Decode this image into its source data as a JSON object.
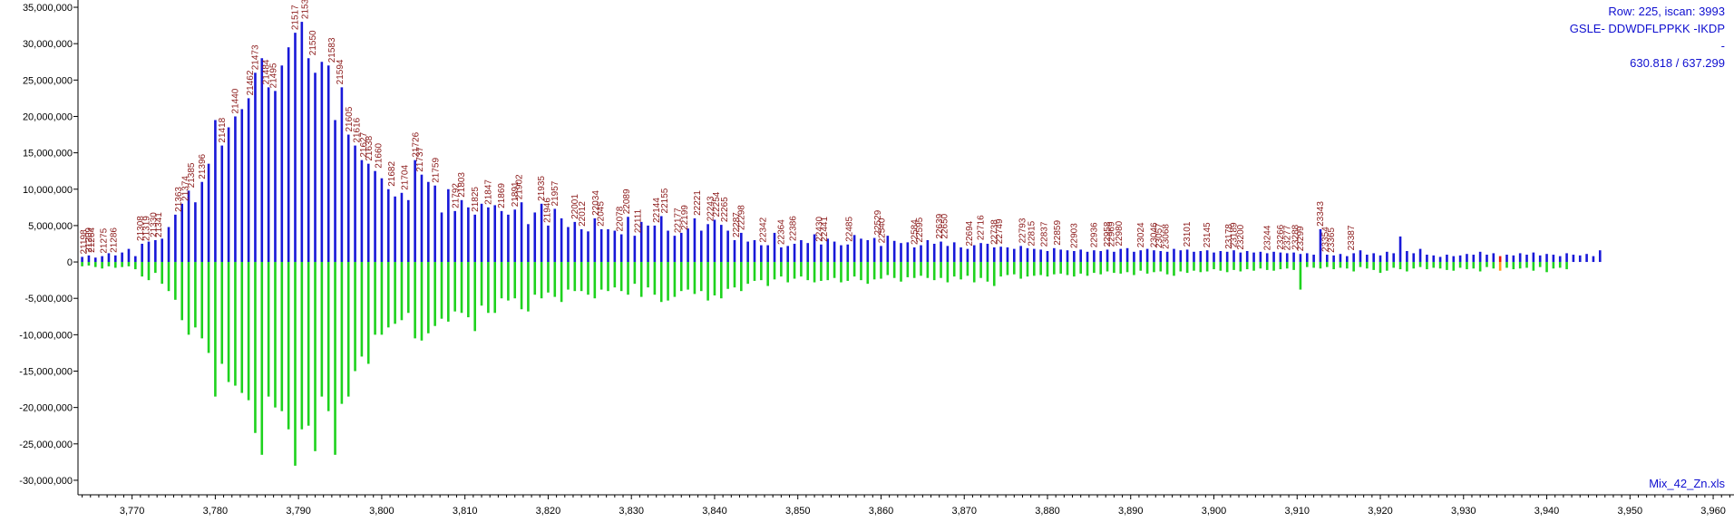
{
  "info": {
    "row_scan": "Row: 225, iscan: 3993",
    "peptide": "GSLE- DDWDFLPPKK -IKDP",
    "dash": "-",
    "mz_pair": "630.818 / 637.299",
    "filename": "Mix_42_Zn.xls"
  },
  "colors": {
    "top_bars": "#1818d8",
    "bottom_bars": "#1ed21e",
    "highlight_top": "#e81010",
    "highlight_bottom": "#ff9a1a",
    "peak_labels": "#8b1a1a",
    "info_text": "#1010d0"
  },
  "chart_data": {
    "type": "bar",
    "xlim": [
      3763.5,
      3962.5
    ],
    "ylim": [
      -32000000,
      36000000
    ],
    "yticks": [
      -30000000,
      -25000000,
      -20000000,
      -15000000,
      -10000000,
      -5000000,
      0,
      5000000,
      10000000,
      15000000,
      20000000,
      25000000,
      30000000,
      35000000
    ],
    "ytick_labels": [
      "-30,000,000",
      "-25,000,000",
      "-20,000,000",
      "-15,000,000",
      "-10,000,000",
      "-5,000,000",
      "0",
      "5,000,000",
      "10,000,000",
      "15,000,000",
      "20,000,000",
      "25,000,000",
      "30,000,000",
      "35,000,000"
    ],
    "xticks": [
      3770,
      3780,
      3790,
      3800,
      3810,
      3820,
      3830,
      3840,
      3850,
      3860,
      3870,
      3880,
      3890,
      3900,
      3910,
      3920,
      3930,
      3940,
      3950,
      3960
    ],
    "xtick_labels": [
      "3,770",
      "3,780",
      "3,790",
      "3,800",
      "3,810",
      "3,820",
      "3,830",
      "3,840",
      "3,850",
      "3,860",
      "3,870",
      "3,880",
      "3,890",
      "3,900",
      "3,910",
      "3,920",
      "3,930",
      "3,940",
      "3,950",
      "3,960"
    ],
    "x_start": 3764.0,
    "x_step": 0.8,
    "highlight_x": 3934.4,
    "top": [
      700000,
      900000,
      600000,
      800000,
      1200000,
      900000,
      1300000,
      1800000,
      800000,
      2500000,
      2800000,
      3000000,
      3200000,
      4800000,
      6500000,
      8000000,
      9800000,
      8200000,
      11000000,
      13500000,
      19500000,
      16000000,
      18500000,
      20000000,
      21000000,
      22500000,
      26000000,
      28000000,
      24000000,
      23500000,
      27000000,
      29500000,
      31500000,
      33000000,
      28000000,
      26000000,
      27500000,
      27000000,
      19500000,
      24000000,
      17500000,
      16000000,
      14000000,
      13500000,
      12500000,
      11500000,
      10000000,
      9000000,
      9500000,
      8500000,
      14000000,
      12000000,
      11000000,
      10500000,
      6800000,
      10000000,
      7000000,
      8500000,
      7500000,
      6500000,
      8000000,
      7500000,
      7800000,
      7000000,
      6500000,
      7200000,
      8200000,
      5200000,
      6800000,
      8000000,
      5000000,
      7300000,
      6000000,
      4800000,
      5500000,
      4500000,
      4200000,
      6000000,
      4500000,
      4500000,
      4300000,
      3800000,
      6200000,
      3600000,
      5500000,
      5000000,
      5000000,
      6300000,
      4300000,
      3600000,
      4000000,
      4600000,
      6000000,
      4300000,
      5200000,
      5800000,
      5100000,
      4300000,
      3000000,
      4000000,
      2800000,
      3000000,
      2300000,
      2300000,
      4000000,
      2000000,
      2200000,
      2500000,
      3000000,
      2600000,
      3800000,
      2400000,
      3200000,
      2800000,
      2300000,
      2400000,
      3700000,
      3200000,
      3000000,
      3300000,
      2200000,
      3600000,
      2900000,
      2600000,
      2700000,
      2000000,
      2300000,
      3000000,
      2500000,
      2800000,
      2200000,
      2700000,
      2000000,
      1800000,
      2300000,
      2600000,
      2500000,
      2000000,
      2100000,
      2000000,
      1800000,
      2200000,
      1900000,
      1800000,
      1700000,
      1500000,
      1900000,
      1700000,
      1600000,
      1500000,
      1700000,
      1400000,
      1600000,
      1500000,
      1700000,
      1400000,
      1800000,
      1900000,
      1400000,
      1600000,
      1800000,
      1600000,
      1500000,
      1400000,
      1800000,
      1600000,
      1700000,
      1400000,
      1500000,
      1600000,
      1300000,
      1500000,
      1400000,
      1600000,
      1300000,
      1500000,
      1300000,
      1400000,
      1200000,
      1400000,
      1300000,
      1200000,
      1300000,
      1100000,
      1200000,
      1000000,
      4500000,
      1000000,
      900000,
      1100000,
      800000,
      1200000,
      1600000,
      1000000,
      1200000,
      900000,
      1400000,
      1200000,
      3500000,
      1500000,
      1200000,
      1800000,
      1000000,
      900000,
      700000,
      1000000,
      800000,
      900000,
      1100000,
      1000000,
      1400000,
      1000000,
      1200000,
      800000,
      1000000,
      900000,
      1200000,
      1000000,
      1300000,
      900000,
      1100000,
      1000000,
      800000,
      1200000,
      1000000,
      900000,
      1100000,
      800000,
      1600000
    ],
    "bottom": [
      -600000,
      -500000,
      -700000,
      -900000,
      -600000,
      -800000,
      -700000,
      -600000,
      -1000000,
      -2000000,
      -2500000,
      -1500000,
      -3000000,
      -4000000,
      -5200000,
      -8000000,
      -10000000,
      -9000000,
      -10500000,
      -12500000,
      -18500000,
      -14000000,
      -16500000,
      -17000000,
      -18000000,
      -19000000,
      -23500000,
      -26500000,
      -18500000,
      -20000000,
      -20500000,
      -23000000,
      -28000000,
      -23000000,
      -22500000,
      -26000000,
      -18500000,
      -20500000,
      -26500000,
      -19500000,
      -18500000,
      -15000000,
      -13000000,
      -14000000,
      -10000000,
      -10000000,
      -9000000,
      -8500000,
      -8000000,
      -7000000,
      -10500000,
      -10800000,
      -9800000,
      -8800000,
      -7800000,
      -8200000,
      -6800000,
      -7000000,
      -7600000,
      -9500000,
      -6000000,
      -7000000,
      -7000000,
      -5000000,
      -5300000,
      -5000000,
      -6500000,
      -6800000,
      -4500000,
      -5000000,
      -4200000,
      -4800000,
      -5500000,
      -3800000,
      -4000000,
      -4000000,
      -4500000,
      -5000000,
      -3800000,
      -4000000,
      -3500000,
      -4000000,
      -4500000,
      -3000000,
      -4800000,
      -3500000,
      -4500000,
      -5500000,
      -5300000,
      -4800000,
      -4000000,
      -3800000,
      -4400000,
      -4000000,
      -5300000,
      -4600000,
      -5000000,
      -3700000,
      -3500000,
      -4000000,
      -3000000,
      -2600000,
      -2500000,
      -3300000,
      -2400000,
      -2000000,
      -2800000,
      -2300000,
      -2000000,
      -2500000,
      -2800000,
      -2600000,
      -2500000,
      -2200000,
      -2800000,
      -2600000,
      -2000000,
      -2500000,
      -3000000,
      -2400000,
      -2300000,
      -1800000,
      -2200000,
      -2700000,
      -2100000,
      -2200000,
      -1900000,
      -2200000,
      -2500000,
      -2200000,
      -2800000,
      -2000000,
      -2400000,
      -1900000,
      -2800000,
      -2200000,
      -2700000,
      -3300000,
      -2000000,
      -1800000,
      -1700000,
      -2300000,
      -2000000,
      -1900000,
      -1800000,
      -2000000,
      -1700000,
      -1600000,
      -1800000,
      -2000000,
      -1600000,
      -1900000,
      -1500000,
      -1700000,
      -1300000,
      -1500000,
      -1600000,
      -1400000,
      -1800000,
      -1200000,
      -1600000,
      -1400000,
      -1300000,
      -1700000,
      -1900000,
      -1300000,
      -1500000,
      -1200000,
      -1400000,
      -1300000,
      -1000000,
      -1200000,
      -1400000,
      -1100000,
      -1300000,
      -1000000,
      -1200000,
      -900000,
      -1100000,
      -1200000,
      -1000000,
      -900000,
      -1100000,
      -3800000,
      -700000,
      -800000,
      -900000,
      -700000,
      -1000000,
      -800000,
      -900000,
      -1300000,
      -700000,
      -900000,
      -1100000,
      -1500000,
      -1200000,
      -800000,
      -1000000,
      -1300000,
      -900000,
      -700000,
      -1000000,
      -800000,
      -900000,
      -1100000,
      -1200000,
      -800000,
      -1000000,
      -900000,
      -1300000,
      -700000,
      -900000,
      -1200000,
      -800000,
      -1000000,
      -900000,
      -800000,
      -1200000,
      -700000,
      -1400000,
      -900000,
      -800000,
      -1000000
    ],
    "peak_labels": [
      {
        "x": 3764.1,
        "label": "21198"
      },
      {
        "x": 3764.7,
        "label": "21209"
      },
      {
        "x": 3765.0,
        "label": "21264"
      },
      {
        "x": 3766.5,
        "label": "21275"
      },
      {
        "x": 3767.7,
        "label": "21286"
      },
      {
        "x": 3770.9,
        "label": "21308"
      },
      {
        "x": 3771.6,
        "label": "21319"
      },
      {
        "x": 3772.5,
        "label": "21330"
      },
      {
        "x": 3773.1,
        "label": "21341"
      },
      {
        "x": 3775.5,
        "label": "21363"
      },
      {
        "x": 3776.3,
        "label": "21374"
      },
      {
        "x": 3777.0,
        "label": "21385"
      },
      {
        "x": 3778.3,
        "label": "21396"
      },
      {
        "x": 3780.7,
        "label": "21418"
      },
      {
        "x": 3782.3,
        "label": "21440"
      },
      {
        "x": 3784.1,
        "label": "21462"
      },
      {
        "x": 3784.7,
        "label": "21473"
      },
      {
        "x": 3786.0,
        "label": "21484"
      },
      {
        "x": 3786.9,
        "label": "21495"
      },
      {
        "x": 3789.5,
        "label": "21517"
      },
      {
        "x": 3790.7,
        "label": "21539"
      },
      {
        "x": 3791.6,
        "label": "21550"
      },
      {
        "x": 3793.9,
        "label": "21583"
      },
      {
        "x": 3794.9,
        "label": "21594"
      },
      {
        "x": 3796.0,
        "label": "21605"
      },
      {
        "x": 3796.9,
        "label": "21616"
      },
      {
        "x": 3797.7,
        "label": "21627"
      },
      {
        "x": 3798.4,
        "label": "21638"
      },
      {
        "x": 3799.5,
        "label": "21660"
      },
      {
        "x": 3801.1,
        "label": "21682"
      },
      {
        "x": 3802.7,
        "label": "21704"
      },
      {
        "x": 3804.0,
        "label": "21726"
      },
      {
        "x": 3804.5,
        "label": "21737"
      },
      {
        "x": 3806.4,
        "label": "21759"
      },
      {
        "x": 3808.8,
        "label": "21792"
      },
      {
        "x": 3809.5,
        "label": "21803"
      },
      {
        "x": 3811.1,
        "label": "21825"
      },
      {
        "x": 3812.7,
        "label": "21847"
      },
      {
        "x": 3814.3,
        "label": "21869"
      },
      {
        "x": 3815.9,
        "label": "21891"
      },
      {
        "x": 3816.4,
        "label": "21902"
      },
      {
        "x": 3819.1,
        "label": "21935"
      },
      {
        "x": 3819.8,
        "label": "21946"
      },
      {
        "x": 3820.7,
        "label": "21957"
      },
      {
        "x": 3823.1,
        "label": "22001"
      },
      {
        "x": 3824.0,
        "label": "22012"
      },
      {
        "x": 3825.6,
        "label": "22034"
      },
      {
        "x": 3826.2,
        "label": "22045"
      },
      {
        "x": 3828.5,
        "label": "22078"
      },
      {
        "x": 3829.3,
        "label": "22089"
      },
      {
        "x": 3830.7,
        "label": "22111"
      },
      {
        "x": 3832.9,
        "label": "22144"
      },
      {
        "x": 3833.9,
        "label": "22155"
      },
      {
        "x": 3835.5,
        "label": "22177"
      },
      {
        "x": 3836.3,
        "label": "22199"
      },
      {
        "x": 3837.8,
        "label": "22221"
      },
      {
        "x": 3839.4,
        "label": "22243"
      },
      {
        "x": 3840.1,
        "label": "22254"
      },
      {
        "x": 3841.1,
        "label": "22265"
      },
      {
        "x": 3842.5,
        "label": "22287"
      },
      {
        "x": 3843.1,
        "label": "22298"
      },
      {
        "x": 3845.7,
        "label": "22342"
      },
      {
        "x": 3847.9,
        "label": "22364"
      },
      {
        "x": 3849.3,
        "label": "22386"
      },
      {
        "x": 3852.5,
        "label": "22430"
      },
      {
        "x": 3853.1,
        "label": "22441"
      },
      {
        "x": 3856.1,
        "label": "22485"
      },
      {
        "x": 3859.5,
        "label": "22529"
      },
      {
        "x": 3860.0,
        "label": "22540"
      },
      {
        "x": 3863.9,
        "label": "22584"
      },
      {
        "x": 3864.5,
        "label": "22595"
      },
      {
        "x": 3866.9,
        "label": "22639"
      },
      {
        "x": 3867.5,
        "label": "22650"
      },
      {
        "x": 3870.5,
        "label": "22694"
      },
      {
        "x": 3871.9,
        "label": "22716"
      },
      {
        "x": 3873.5,
        "label": "22738"
      },
      {
        "x": 3874.1,
        "label": "22749"
      },
      {
        "x": 3876.9,
        "label": "22793"
      },
      {
        "x": 3878.0,
        "label": "22815"
      },
      {
        "x": 3879.5,
        "label": "22837"
      },
      {
        "x": 3881.1,
        "label": "22859"
      },
      {
        "x": 3883.1,
        "label": "22903"
      },
      {
        "x": 3885.5,
        "label": "22936"
      },
      {
        "x": 3887.1,
        "label": "22958"
      },
      {
        "x": 3887.6,
        "label": "22969"
      },
      {
        "x": 3888.5,
        "label": "22980"
      },
      {
        "x": 3891.1,
        "label": "23024"
      },
      {
        "x": 3892.7,
        "label": "23046"
      },
      {
        "x": 3893.3,
        "label": "23057"
      },
      {
        "x": 3894.1,
        "label": "23068"
      },
      {
        "x": 3896.7,
        "label": "23101"
      },
      {
        "x": 3899.1,
        "label": "23145"
      },
      {
        "x": 3901.7,
        "label": "23178"
      },
      {
        "x": 3902.3,
        "label": "23189"
      },
      {
        "x": 3903.1,
        "label": "23200"
      },
      {
        "x": 3906.3,
        "label": "23244"
      },
      {
        "x": 3907.9,
        "label": "23266"
      },
      {
        "x": 3908.7,
        "label": "23277"
      },
      {
        "x": 3909.7,
        "label": "23288"
      },
      {
        "x": 3910.3,
        "label": "23299"
      },
      {
        "x": 3912.7,
        "label": "23343"
      },
      {
        "x": 3913.3,
        "label": "23354"
      },
      {
        "x": 3914.0,
        "label": "23365"
      },
      {
        "x": 3916.4,
        "label": "23387"
      }
    ]
  }
}
